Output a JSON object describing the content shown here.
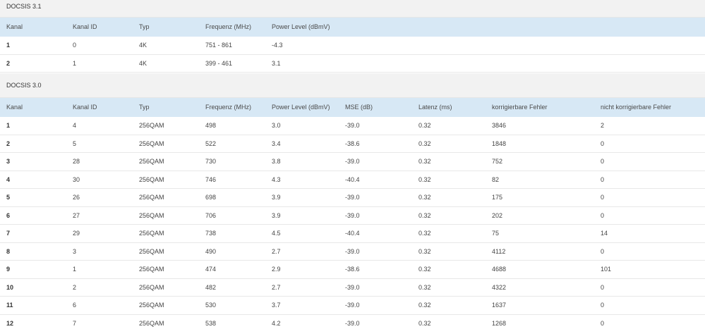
{
  "docsis31": {
    "title": "DOCSIS 3.1",
    "headers": [
      "Kanal",
      "Kanal ID",
      "Typ",
      "Frequenz (MHz)",
      "Power Level (dBmV)"
    ],
    "rows": [
      [
        "1",
        "0",
        "4K",
        "751 - 861",
        "-4.3"
      ],
      [
        "2",
        "1",
        "4K",
        "399 - 461",
        "3.1"
      ]
    ]
  },
  "docsis30": {
    "title": "DOCSIS 3.0",
    "headers": [
      "Kanal",
      "Kanal ID",
      "Typ",
      "Frequenz (MHz)",
      "Power Level (dBmV)",
      "MSE (dB)",
      "Latenz (ms)",
      "korrigierbare Fehler",
      "nicht korrigierbare Fehler"
    ],
    "rows": [
      [
        "1",
        "4",
        "256QAM",
        "498",
        "3.0",
        "-39.0",
        "0.32",
        "3846",
        "2"
      ],
      [
        "2",
        "5",
        "256QAM",
        "522",
        "3.4",
        "-38.6",
        "0.32",
        "1848",
        "0"
      ],
      [
        "3",
        "28",
        "256QAM",
        "730",
        "3.8",
        "-39.0",
        "0.32",
        "752",
        "0"
      ],
      [
        "4",
        "30",
        "256QAM",
        "746",
        "4.3",
        "-40.4",
        "0.32",
        "82",
        "0"
      ],
      [
        "5",
        "26",
        "256QAM",
        "698",
        "3.9",
        "-39.0",
        "0.32",
        "175",
        "0"
      ],
      [
        "6",
        "27",
        "256QAM",
        "706",
        "3.9",
        "-39.0",
        "0.32",
        "202",
        "0"
      ],
      [
        "7",
        "29",
        "256QAM",
        "738",
        "4.5",
        "-40.4",
        "0.32",
        "75",
        "14"
      ],
      [
        "8",
        "3",
        "256QAM",
        "490",
        "2.7",
        "-39.0",
        "0.32",
        "4112",
        "0"
      ],
      [
        "9",
        "1",
        "256QAM",
        "474",
        "2.9",
        "-38.6",
        "0.32",
        "4688",
        "101"
      ],
      [
        "10",
        "2",
        "256QAM",
        "482",
        "2.7",
        "-39.0",
        "0.32",
        "4322",
        "0"
      ],
      [
        "11",
        "6",
        "256QAM",
        "530",
        "3.7",
        "-39.0",
        "0.32",
        "1637",
        "0"
      ],
      [
        "12",
        "7",
        "256QAM",
        "538",
        "4.2",
        "-39.0",
        "0.32",
        "1268",
        "0"
      ]
    ]
  }
}
